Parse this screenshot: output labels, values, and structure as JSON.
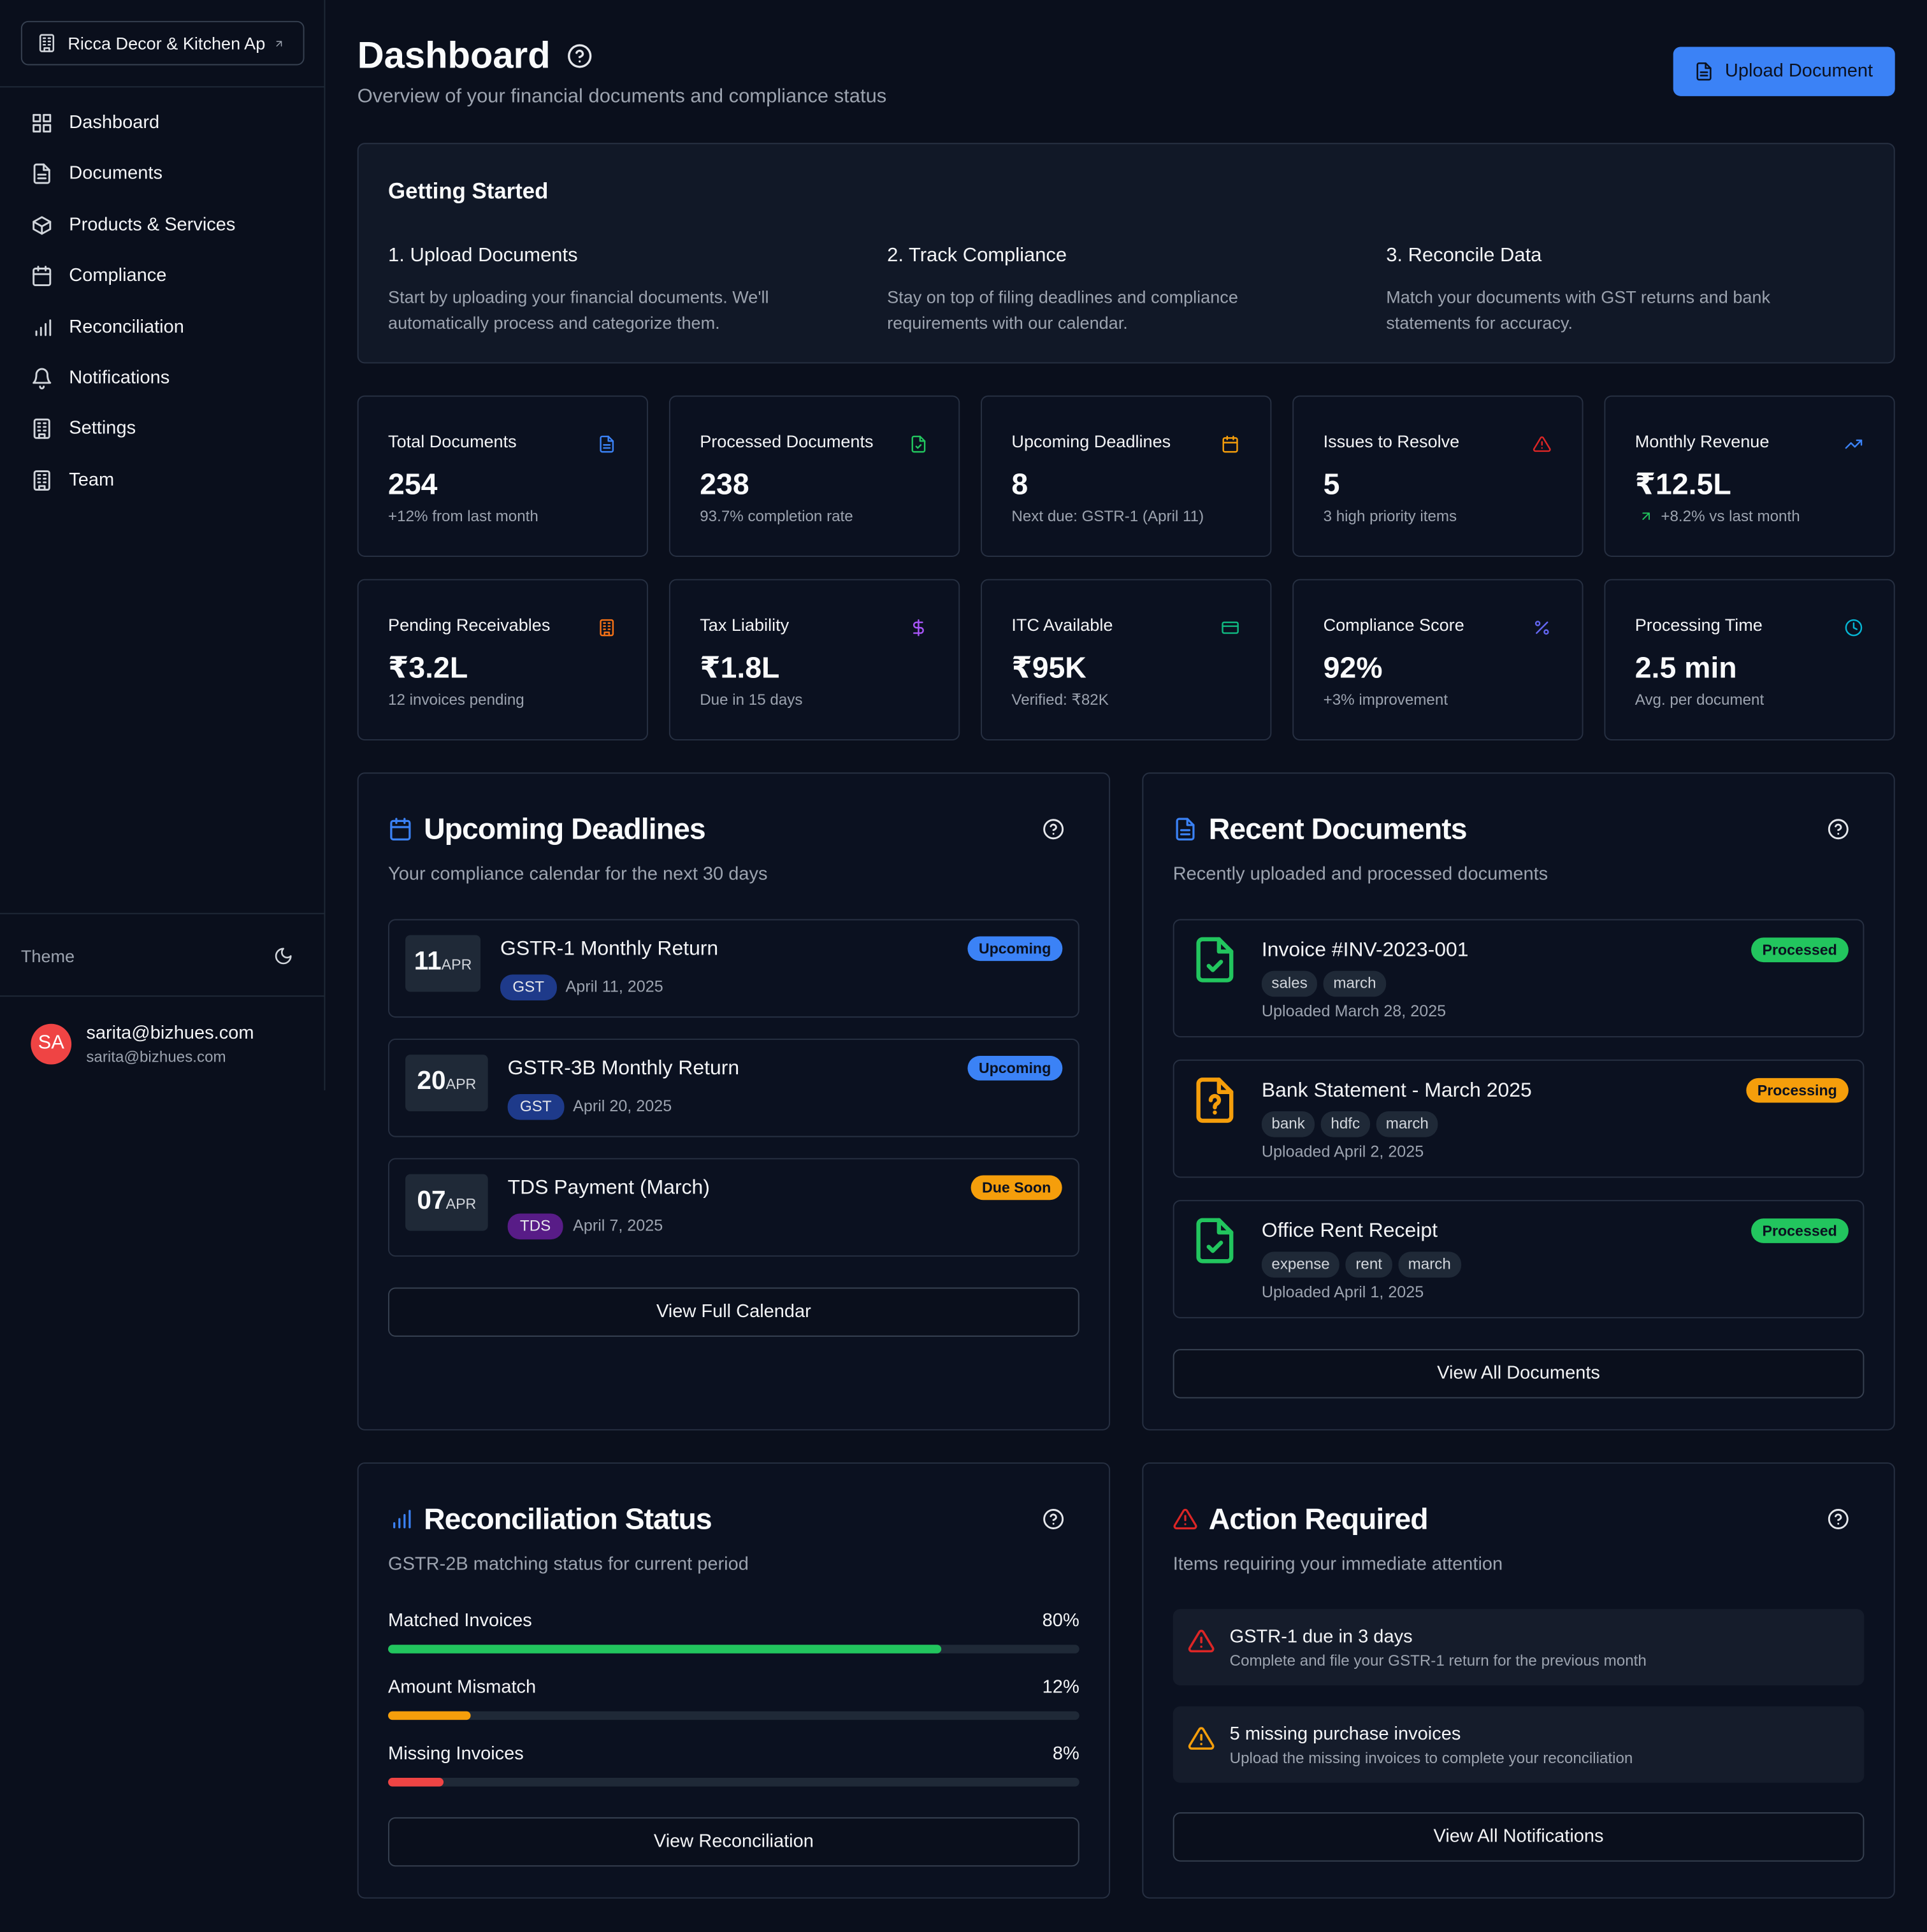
{
  "sidebar": {
    "org": "Ricca Decor & Kitchen Ap",
    "nav": [
      "Dashboard",
      "Documents",
      "Products & Services",
      "Compliance",
      "Reconciliation",
      "Notifications",
      "Settings",
      "Team"
    ],
    "theme": "Theme",
    "user": {
      "initials": "SA",
      "name": "sarita@bizhues.com",
      "email": "sarita@bizhues.com"
    }
  },
  "header": {
    "title": "Dashboard",
    "subtitle": "Overview of your financial documents and compliance status",
    "upload": "Upload Document"
  },
  "getting_started": {
    "title": "Getting Started",
    "steps": [
      {
        "title": "1. Upload Documents",
        "text": "Start by uploading your financial documents. We'll automatically process and categorize them."
      },
      {
        "title": "2. Track Compliance",
        "text": "Stay on top of filing deadlines and compliance requirements with our calendar."
      },
      {
        "title": "3. Reconcile Data",
        "text": "Match your documents with GST returns and bank statements for accuracy."
      }
    ]
  },
  "stats": [
    {
      "label": "Total Documents",
      "value": "254",
      "note": "+12% from last month"
    },
    {
      "label": "Processed Documents",
      "value": "238",
      "note": "93.7% completion rate"
    },
    {
      "label": "Upcoming Deadlines",
      "value": "8",
      "note": "Next due: GSTR-1 (April 11)"
    },
    {
      "label": "Issues to Resolve",
      "value": "5",
      "note": "3 high priority items"
    },
    {
      "label": "Monthly Revenue",
      "value": "₹12.5L",
      "note": "+8.2% vs last month"
    },
    {
      "label": "Pending Receivables",
      "value": "₹3.2L",
      "note": "12 invoices pending"
    },
    {
      "label": "Tax Liability",
      "value": "₹1.8L",
      "note": "Due in 15 days"
    },
    {
      "label": "ITC Available",
      "value": "₹95K",
      "note": "Verified: ₹82K"
    },
    {
      "label": "Compliance Score",
      "value": "92%",
      "note": "+3% improvement"
    },
    {
      "label": "Processing Time",
      "value": "2.5 min",
      "note": "Avg. per document"
    }
  ],
  "deadlines": {
    "title": "Upcoming Deadlines",
    "subtitle": "Your compliance calendar for the next 30 days",
    "items": [
      {
        "day": "11",
        "month": "APR",
        "title": "GSTR-1 Monthly Return",
        "status": "Upcoming",
        "status_color": "#3b82f6",
        "tag": "GST",
        "tag_color": "#1e3a8a",
        "date": "April 11, 2025"
      },
      {
        "day": "20",
        "month": "APR",
        "title": "GSTR-3B Monthly Return",
        "status": "Upcoming",
        "status_color": "#3b82f6",
        "tag": "GST",
        "tag_color": "#1e3a8a",
        "date": "April 20, 2025"
      },
      {
        "day": "07",
        "month": "APR",
        "title": "TDS Payment (March)",
        "status": "Due Soon",
        "status_color": "#f59e0b",
        "tag": "TDS",
        "tag_color": "#581c87",
        "date": "April 7, 2025"
      }
    ],
    "button": "View Full Calendar"
  },
  "documents": {
    "title": "Recent Documents",
    "subtitle": "Recently uploaded and processed documents",
    "items": [
      {
        "title": "Invoice #INV-2023-001",
        "status": "Processed",
        "status_color": "#22c55e",
        "icon_color": "#22c55e",
        "tags": [
          "sales",
          "march"
        ],
        "uploaded": "Uploaded March 28, 2025"
      },
      {
        "title": "Bank Statement - March 2025",
        "status": "Processing",
        "status_color": "#f59e0b",
        "icon_color": "#f59e0b",
        "tags": [
          "bank",
          "hdfc",
          "march"
        ],
        "uploaded": "Uploaded April 2, 2025"
      },
      {
        "title": "Office Rent Receipt",
        "status": "Processed",
        "status_color": "#22c55e",
        "icon_color": "#22c55e",
        "tags": [
          "expense",
          "rent",
          "march"
        ],
        "uploaded": "Uploaded April 1, 2025"
      }
    ],
    "button": "View All Documents"
  },
  "reconciliation": {
    "title": "Reconciliation Status",
    "subtitle": "GSTR-2B matching status for current period",
    "items": [
      {
        "label": "Matched Invoices",
        "value": 80,
        "value_label": "80%",
        "color": "#22c55e"
      },
      {
        "label": "Amount Mismatch",
        "value": 12,
        "value_label": "12%",
        "color": "#f59e0b"
      },
      {
        "label": "Missing Invoices",
        "value": 8,
        "value_label": "8%",
        "color": "#ef4444"
      }
    ],
    "button": "View Reconciliation"
  },
  "actions": {
    "title": "Action Required",
    "subtitle": "Items requiring your immediate attention",
    "items": [
      {
        "title": "GSTR-1 due in 3 days",
        "text": "Complete and file your GSTR-1 return for the previous month",
        "color": "#dc2626"
      },
      {
        "title": "5 missing purchase invoices",
        "text": "Upload the missing invoices to complete your reconciliation",
        "color": "#f59e0b"
      }
    ],
    "button": "View All Notifications"
  }
}
